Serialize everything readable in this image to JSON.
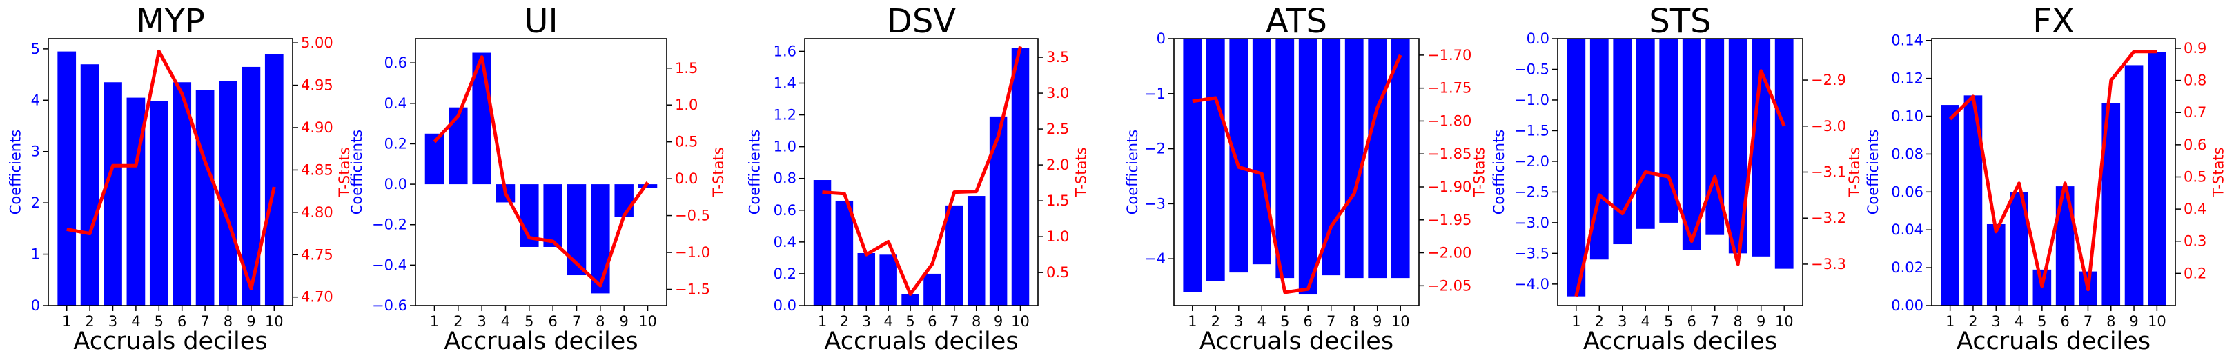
{
  "colors": {
    "bar": "#0000ff",
    "line": "#ff0000",
    "axis": "#000000",
    "left_tick": "#0000ff",
    "right_tick": "#ff0000"
  },
  "chart_data": [
    {
      "type": "bar",
      "title": "MYP",
      "xlabel": "Accruals deciles",
      "ylabel": "Coefficients",
      "y2label": "T-Stats",
      "categories": [
        "1",
        "2",
        "3",
        "4",
        "5",
        "6",
        "7",
        "8",
        "9",
        "10"
      ],
      "series": [
        {
          "type": "bar",
          "axis": "left",
          "values": [
            4.95,
            4.7,
            4.35,
            4.05,
            3.98,
            4.35,
            4.2,
            4.38,
            4.65,
            4.9
          ]
        },
        {
          "type": "line",
          "axis": "right",
          "values": [
            4.78,
            4.775,
            4.855,
            4.855,
            4.99,
            4.94,
            4.86,
            4.79,
            4.71,
            4.83
          ]
        }
      ],
      "ylim": [
        0,
        5.2
      ],
      "y2lim": [
        4.69,
        5.005
      ],
      "yticks": [
        0,
        1,
        2,
        3,
        4,
        5
      ],
      "y2ticks": [
        4.7,
        4.75,
        4.8,
        4.85,
        4.9,
        4.95,
        5.0
      ],
      "yticklabels": [
        "0",
        "1",
        "2",
        "3",
        "4",
        "5"
      ],
      "y2ticklabels": [
        "4.70",
        "4.75",
        "4.80",
        "4.85",
        "4.90",
        "4.95",
        "5.00"
      ]
    },
    {
      "type": "bar",
      "title": "UI",
      "xlabel": "Accruals deciles",
      "ylabel": "Coefficients",
      "y2label": "T-Stats",
      "categories": [
        "1",
        "2",
        "3",
        "4",
        "5",
        "6",
        "7",
        "8",
        "9",
        "10"
      ],
      "series": [
        {
          "type": "bar",
          "axis": "left",
          "values": [
            0.25,
            0.38,
            0.65,
            -0.09,
            -0.31,
            -0.31,
            -0.45,
            -0.54,
            -0.16,
            -0.02
          ]
        },
        {
          "type": "line",
          "axis": "right",
          "values": [
            0.5,
            0.85,
            1.65,
            -0.2,
            -0.8,
            -0.85,
            -1.15,
            -1.45,
            -0.5,
            -0.05
          ]
        }
      ],
      "ylim": [
        -0.6,
        0.72
      ],
      "y2lim": [
        -1.72,
        1.9
      ],
      "yticks": [
        -0.6,
        -0.4,
        -0.2,
        0.0,
        0.2,
        0.4,
        0.6
      ],
      "y2ticks": [
        -1.5,
        -1.0,
        -0.5,
        0.0,
        0.5,
        1.0,
        1.5
      ],
      "yticklabels": [
        "−0.6",
        "−0.4",
        "−0.2",
        "0.0",
        "0.2",
        "0.4",
        "0.6"
      ],
      "y2ticklabels": [
        "−1.5",
        "−1.0",
        "−0.5",
        "0.0",
        "0.5",
        "1.0",
        "1.5"
      ]
    },
    {
      "type": "bar",
      "title": "DSV",
      "xlabel": "Accruals deciles",
      "ylabel": "Coefficients",
      "y2label": "T-Stats",
      "categories": [
        "1",
        "2",
        "3",
        "4",
        "5",
        "6",
        "7",
        "8",
        "9",
        "10"
      ],
      "series": [
        {
          "type": "bar",
          "axis": "left",
          "values": [
            0.79,
            0.66,
            0.33,
            0.32,
            0.07,
            0.2,
            0.63,
            0.69,
            1.19,
            1.62
          ]
        },
        {
          "type": "line",
          "axis": "right",
          "values": [
            1.62,
            1.6,
            0.75,
            0.93,
            0.2,
            0.62,
            1.62,
            1.63,
            2.4,
            3.65
          ]
        }
      ],
      "ylim": [
        0,
        1.68
      ],
      "y2lim": [
        0.04,
        3.76
      ],
      "yticks": [
        0.0,
        0.2,
        0.4,
        0.6,
        0.8,
        1.0,
        1.2,
        1.4,
        1.6
      ],
      "y2ticks": [
        0.5,
        1.0,
        1.5,
        2.0,
        2.5,
        3.0,
        3.5
      ],
      "yticklabels": [
        "0.0",
        "0.2",
        "0.4",
        "0.6",
        "0.8",
        "1.0",
        "1.2",
        "1.4",
        "1.6"
      ],
      "y2ticklabels": [
        "0.5",
        "1.0",
        "1.5",
        "2.0",
        "2.5",
        "3.0",
        "3.5"
      ]
    },
    {
      "type": "bar",
      "title": "ATS",
      "xlabel": "Accruals deciles",
      "ylabel": "Coefficients",
      "y2label": "T-Stats",
      "categories": [
        "1",
        "2",
        "3",
        "4",
        "5",
        "6",
        "7",
        "8",
        "9",
        "10"
      ],
      "series": [
        {
          "type": "bar",
          "axis": "left",
          "values": [
            -4.6,
            -4.4,
            -4.25,
            -4.1,
            -4.35,
            -4.65,
            -4.3,
            -4.35,
            -4.35,
            -4.35
          ]
        },
        {
          "type": "line",
          "axis": "right",
          "values": [
            -1.77,
            -1.765,
            -1.87,
            -1.88,
            -2.06,
            -2.055,
            -1.96,
            -1.91,
            -1.78,
            -1.7
          ]
        }
      ],
      "ylim": [
        -4.85,
        0
      ],
      "y2lim": [
        -2.08,
        -1.675
      ],
      "yticks": [
        -4,
        -3,
        -2,
        -1,
        0
      ],
      "y2ticks": [
        -2.05,
        -2.0,
        -1.95,
        -1.9,
        -1.85,
        -1.8,
        -1.75,
        -1.7
      ],
      "yticklabels": [
        "−4",
        "−3",
        "−2",
        "−1",
        "0"
      ],
      "y2ticklabels": [
        "−2.05",
        "−2.00",
        "−1.95",
        "−1.90",
        "−1.85",
        "−1.80",
        "−1.75",
        "−1.70"
      ]
    },
    {
      "type": "bar",
      "title": "STS",
      "xlabel": "Accruals deciles",
      "ylabel": "Coefficients",
      "y2label": "T-Stats",
      "categories": [
        "1",
        "2",
        "3",
        "4",
        "5",
        "6",
        "7",
        "8",
        "9",
        "10"
      ],
      "series": [
        {
          "type": "bar",
          "axis": "left",
          "values": [
            -4.2,
            -3.6,
            -3.35,
            -3.1,
            -3.0,
            -3.45,
            -3.2,
            -3.5,
            -3.55,
            -3.75
          ]
        },
        {
          "type": "line",
          "axis": "right",
          "values": [
            -3.37,
            -3.15,
            -3.19,
            -3.1,
            -3.11,
            -3.25,
            -3.11,
            -3.3,
            -2.88,
            -3.0
          ]
        }
      ],
      "ylim": [
        -4.35,
        0
      ],
      "y2lim": [
        -3.39,
        -2.81
      ],
      "yticks": [
        -4.0,
        -3.5,
        -3.0,
        -2.5,
        -2.0,
        -1.5,
        -1.0,
        -0.5,
        0.0
      ],
      "y2ticks": [
        -3.3,
        -3.2,
        -3.1,
        -3.0,
        -2.9
      ],
      "yticklabels": [
        "−4.0",
        "−3.5",
        "−3.0",
        "−2.5",
        "−2.0",
        "−1.5",
        "−1.0",
        "−0.5",
        "0.0"
      ],
      "y2ticklabels": [
        "−3.3",
        "−3.2",
        "−3.1",
        "−3.0",
        "−2.9"
      ]
    },
    {
      "type": "bar",
      "title": "FX",
      "xlabel": "Accruals deciles",
      "ylabel": "Coefficients",
      "y2label": "T-Stats",
      "categories": [
        "1",
        "2",
        "3",
        "4",
        "5",
        "6",
        "7",
        "8",
        "9",
        "10"
      ],
      "series": [
        {
          "type": "bar",
          "axis": "left",
          "values": [
            0.106,
            0.111,
            0.043,
            0.06,
            0.019,
            0.063,
            0.018,
            0.107,
            0.127,
            0.134
          ]
        },
        {
          "type": "line",
          "axis": "right",
          "values": [
            0.68,
            0.75,
            0.33,
            0.48,
            0.16,
            0.48,
            0.15,
            0.8,
            0.89,
            0.89
          ]
        }
      ],
      "ylim": [
        0,
        0.141
      ],
      "y2lim": [
        0.1,
        0.93
      ],
      "yticks": [
        0.0,
        0.02,
        0.04,
        0.06,
        0.08,
        0.1,
        0.12,
        0.14
      ],
      "y2ticks": [
        0.2,
        0.3,
        0.4,
        0.5,
        0.6,
        0.7,
        0.8,
        0.9
      ],
      "yticklabels": [
        "0.00",
        "0.02",
        "0.04",
        "0.06",
        "0.08",
        "0.10",
        "0.12",
        "0.14"
      ],
      "y2ticklabels": [
        "0.2",
        "0.3",
        "0.4",
        "0.5",
        "0.6",
        "0.7",
        "0.8",
        "0.9"
      ]
    }
  ]
}
